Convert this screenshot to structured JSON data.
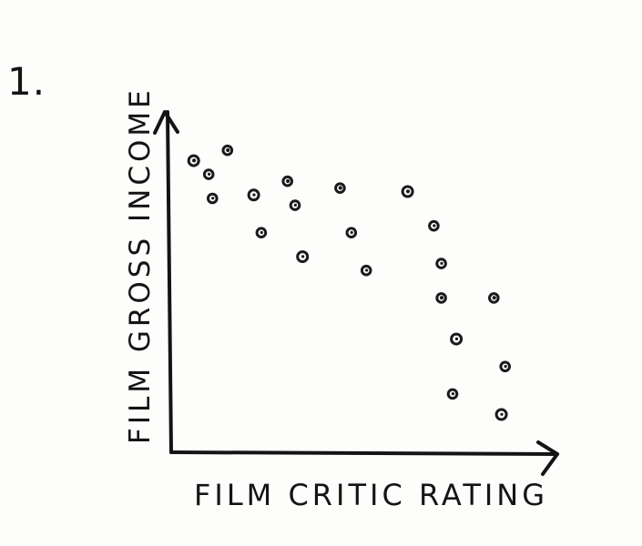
{
  "figure_number": "1.",
  "chart_data": {
    "type": "scatter",
    "title": "",
    "xlabel": "FILM CRITIC RATING",
    "ylabel": "FILM GROSS INCOME",
    "xlim": [
      0,
      100
    ],
    "ylim": [
      0,
      100
    ],
    "grid": false,
    "legend": "none",
    "series": [
      {
        "points": [
          {
            "x": 6,
            "y": 85
          },
          {
            "x": 10,
            "y": 81
          },
          {
            "x": 11,
            "y": 74
          },
          {
            "x": 15,
            "y": 88
          },
          {
            "x": 22,
            "y": 75
          },
          {
            "x": 24,
            "y": 64
          },
          {
            "x": 31,
            "y": 79
          },
          {
            "x": 33,
            "y": 72
          },
          {
            "x": 35,
            "y": 57
          },
          {
            "x": 45,
            "y": 77
          },
          {
            "x": 48,
            "y": 64
          },
          {
            "x": 52,
            "y": 53
          },
          {
            "x": 63,
            "y": 76
          },
          {
            "x": 70,
            "y": 66
          },
          {
            "x": 72,
            "y": 55
          },
          {
            "x": 72,
            "y": 45
          },
          {
            "x": 76,
            "y": 33
          },
          {
            "x": 75,
            "y": 17
          },
          {
            "x": 86,
            "y": 45
          },
          {
            "x": 89,
            "y": 25
          },
          {
            "x": 88,
            "y": 11
          }
        ]
      }
    ]
  }
}
